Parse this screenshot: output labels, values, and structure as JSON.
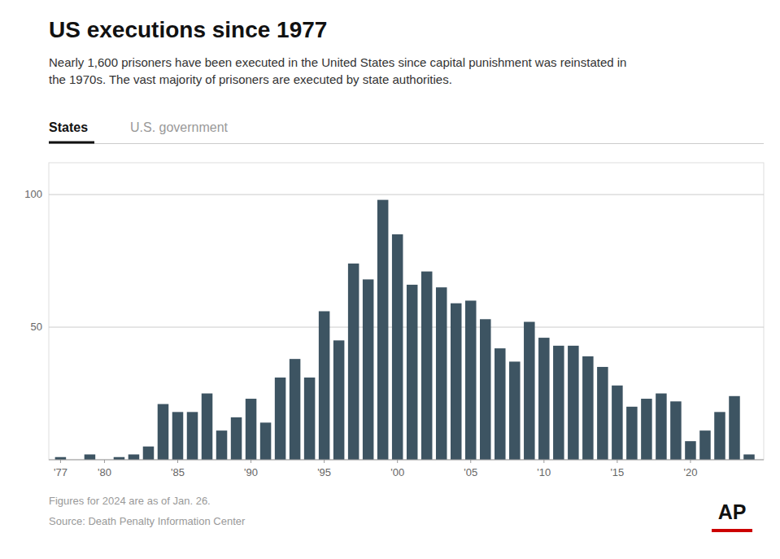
{
  "chart_data": {
    "type": "bar",
    "title": "US executions since 1977",
    "subtitle": "Nearly 1,600 prisoners have been executed in the United States since capital punishment was reinstated in\nthe 1970s. The vast majority of prisoners are executed by state authorities.",
    "annotations": [
      "States",
      "U.S. government",
      "Figures for 2024 are as of Jan. 26.",
      "Source: Death Penalty Information Center",
      "AP"
    ],
    "x": [
      1977,
      1978,
      1979,
      1980,
      1981,
      1982,
      1983,
      1984,
      1985,
      1986,
      1987,
      1988,
      1989,
      1990,
      1991,
      1992,
      1993,
      1994,
      1995,
      1996,
      1997,
      1998,
      1999,
      2000,
      2001,
      2002,
      2003,
      2004,
      2005,
      2006,
      2007,
      2008,
      2009,
      2010,
      2011,
      2012,
      2013,
      2014,
      2015,
      2016,
      2017,
      2018,
      2019,
      2020,
      2021,
      2022,
      2023,
      2024
    ],
    "values": [
      1,
      0,
      2,
      0,
      1,
      2,
      5,
      21,
      18,
      18,
      25,
      11,
      16,
      23,
      14,
      31,
      38,
      31,
      56,
      45,
      74,
      68,
      98,
      85,
      66,
      71,
      65,
      59,
      60,
      53,
      42,
      37,
      52,
      46,
      43,
      43,
      39,
      35,
      28,
      20,
      23,
      25,
      22,
      7,
      11,
      18,
      24,
      2
    ],
    "color": "#3d5462",
    "xlim": [
      1976.2,
      2025.0
    ],
    "xticks": [
      {
        "value": 1977,
        "label": "'77"
      },
      {
        "value": 1980,
        "label": "'80"
      },
      {
        "value": 1985,
        "label": "'85"
      },
      {
        "value": 1990,
        "label": "'90"
      },
      {
        "value": 1995,
        "label": "'95"
      },
      {
        "value": 2000,
        "label": "'00"
      },
      {
        "value": 2005,
        "label": "'05"
      },
      {
        "value": 2010,
        "label": "'10"
      },
      {
        "value": 2015,
        "label": "'15"
      },
      {
        "value": 2020,
        "label": "'20"
      }
    ],
    "ylim": [
      0,
      112
    ],
    "yticks": [
      50,
      100
    ],
    "grid": true
  }
}
